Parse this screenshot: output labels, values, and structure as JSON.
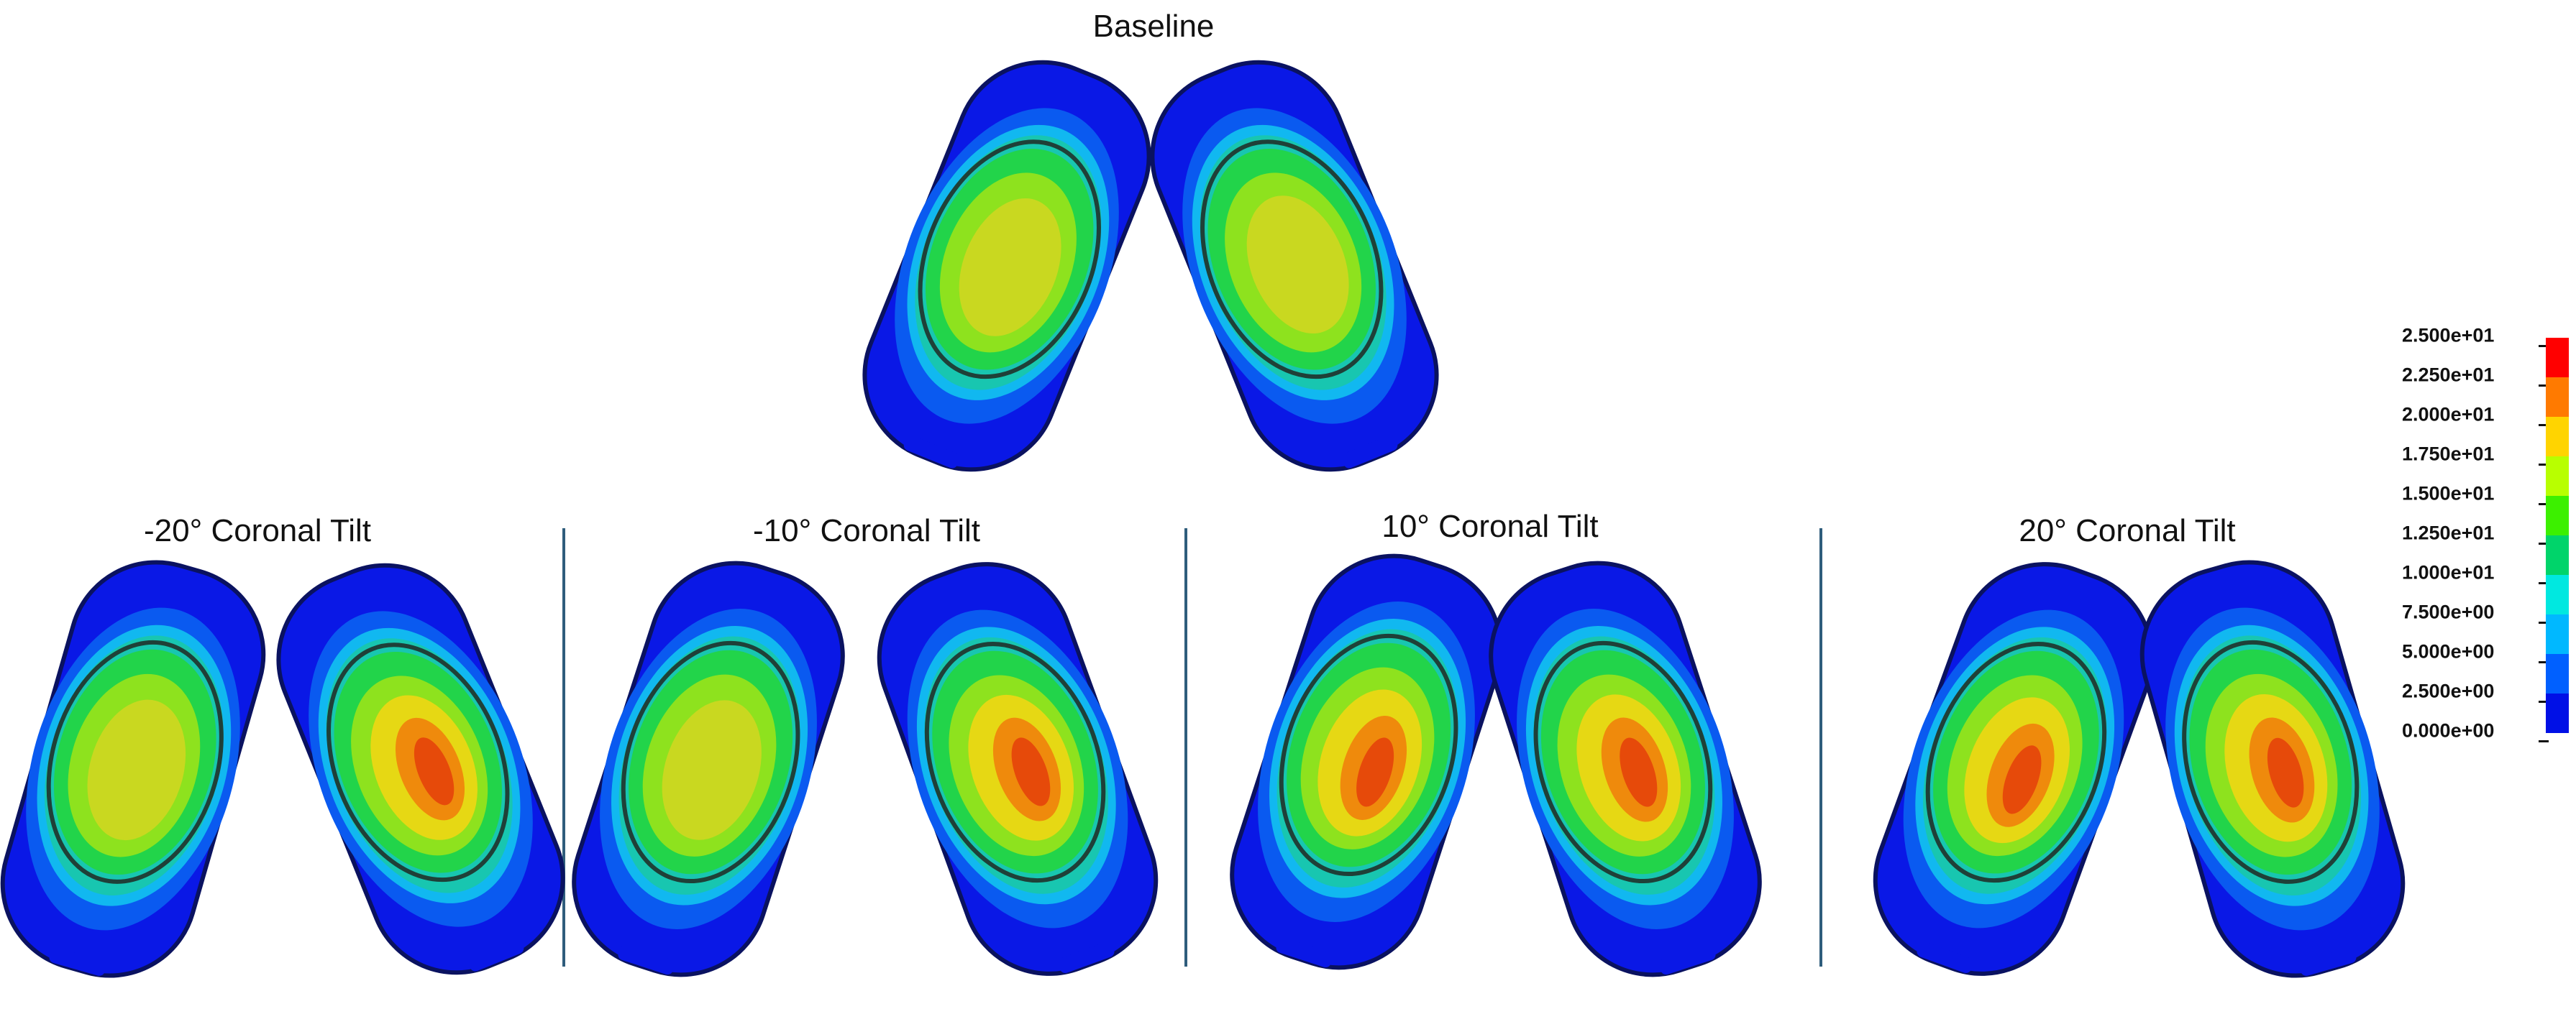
{
  "titles": {
    "baseline": "Baseline",
    "neg20": "-20° Coronal Tilt",
    "neg10": "-10° Coronal Tilt",
    "pos10": "10° Coronal Tilt",
    "pos20": "20° Coronal Tilt"
  },
  "legend": {
    "labels": [
      "2.500e+01",
      "2.250e+01",
      "2.000e+01",
      "1.750e+01",
      "1.500e+01",
      "1.250e+01",
      "1.000e+01",
      "7.500e+00",
      "5.000e+00",
      "2.500e+00",
      "0.000e+00"
    ],
    "colors": [
      "#ff0000",
      "#ff7a00",
      "#ffd400",
      "#b8ff00",
      "#3cf000",
      "#00d46a",
      "#00e8e0",
      "#00b8ff",
      "#0060ff",
      "#0010e6"
    ]
  },
  "colors": {
    "divider": "#2f5d7c",
    "blue": "#0a18e6",
    "blue2": "#0a5af0",
    "cyan": "#11b8f0",
    "teal": "#18c6b0",
    "green": "#22d44a",
    "lime": "#8ee21e",
    "yellow": "#e6d814",
    "orange": "#ef8a0c",
    "red": "#e64a0a"
  }
}
